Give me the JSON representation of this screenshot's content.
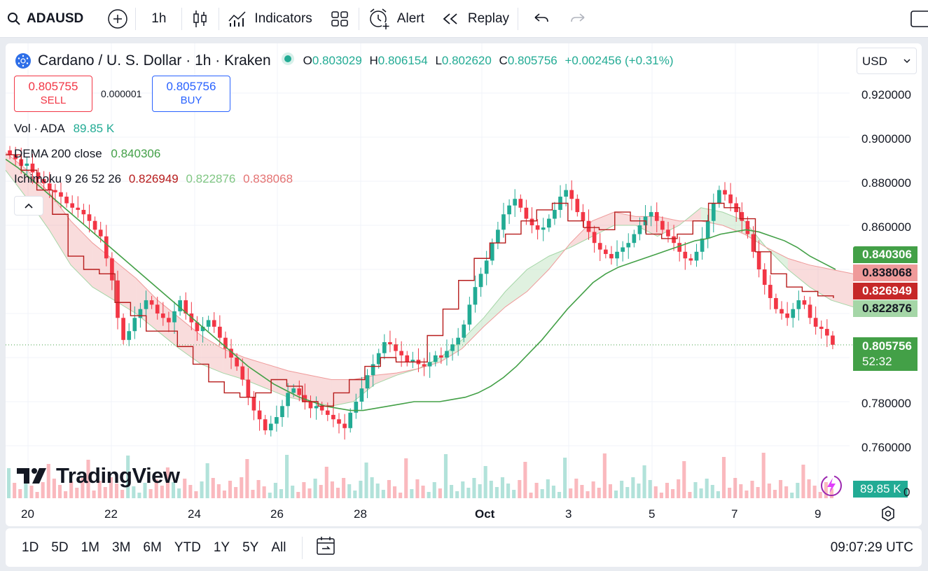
{
  "toolbar": {
    "symbol": "ADAUSD",
    "interval": "1h",
    "indicators_label": "Indicators",
    "alert_label": "Alert",
    "replay_label": "Replay"
  },
  "legend": {
    "title": "Cardano / U. S. Dollar · 1h · Kraken",
    "o_label": "O",
    "o_value": "0.803029",
    "h_label": "H",
    "h_value": "0.806154",
    "l_label": "L",
    "l_value": "0.802620",
    "c_label": "C",
    "c_value": "0.805756",
    "change": "+0.002456 (+0.31%)"
  },
  "trade": {
    "sell_price": "0.805755",
    "sell_label": "SELL",
    "spread": "0.000001",
    "buy_price": "0.805756",
    "buy_label": "BUY"
  },
  "indicators": {
    "vol_label": "Vol · ADA",
    "vol_value": "89.85 K",
    "dema_label": "DEMA 200 close",
    "dema_value": "0.840306",
    "ichimoku_label": "Ichimoku 9 26 52 26",
    "ichi_v1": "0.826949",
    "ichi_v2": "0.822876",
    "ichi_v3": "0.838068"
  },
  "currency": "USD",
  "price_axis": [
    "0.920000",
    "0.900000",
    "0.880000",
    "0.860000",
    "0.780000",
    "0.760000"
  ],
  "price_badges": {
    "dema": "0.840306",
    "span_b": "0.838068",
    "conversion": "0.826949",
    "span_a": "0.822876",
    "last": "0.805756",
    "countdown": "52:32",
    "volume": "89.85 K"
  },
  "time_axis": [
    "20",
    "22",
    "24",
    "26",
    "28",
    "Oct",
    "3",
    "5",
    "7",
    "9"
  ],
  "ranges": [
    "1D",
    "5D",
    "1M",
    "3M",
    "6M",
    "YTD",
    "1Y",
    "5Y",
    "All"
  ],
  "clock": "09:07:29 UTC",
  "watermark": "TradingView",
  "colors": {
    "up": "#22ab94",
    "down": "#f23645",
    "dema": "#43a047",
    "conversion": "#b71c1c",
    "cloud_green": "#a5d6a7",
    "cloud_red": "#ef9a9a"
  },
  "chart_data": {
    "type": "candlestick",
    "ylim": [
      0.752,
      0.934
    ],
    "close": [
      0.892,
      0.89,
      0.887,
      0.888,
      0.884,
      0.881,
      0.879,
      0.876,
      0.875,
      0.873,
      0.87,
      0.868,
      0.867,
      0.865,
      0.862,
      0.858,
      0.855,
      0.845,
      0.835,
      0.818,
      0.808,
      0.812,
      0.818,
      0.822,
      0.826,
      0.824,
      0.82,
      0.818,
      0.816,
      0.821,
      0.826,
      0.82,
      0.816,
      0.812,
      0.814,
      0.817,
      0.814,
      0.809,
      0.804,
      0.8,
      0.796,
      0.79,
      0.782,
      0.776,
      0.772,
      0.767,
      0.77,
      0.773,
      0.778,
      0.784,
      0.786,
      0.783,
      0.78,
      0.777,
      0.778,
      0.776,
      0.774,
      0.772,
      0.77,
      0.768,
      0.775,
      0.78,
      0.786,
      0.792,
      0.797,
      0.802,
      0.807,
      0.806,
      0.803,
      0.801,
      0.798,
      0.799,
      0.797,
      0.796,
      0.798,
      0.801,
      0.8,
      0.803,
      0.806,
      0.809,
      0.815,
      0.824,
      0.832,
      0.838,
      0.844,
      0.852,
      0.858,
      0.865,
      0.869,
      0.872,
      0.868,
      0.863,
      0.86,
      0.858,
      0.859,
      0.863,
      0.867,
      0.873,
      0.876,
      0.872,
      0.866,
      0.862,
      0.857,
      0.852,
      0.849,
      0.847,
      0.845,
      0.848,
      0.85,
      0.852,
      0.856,
      0.86,
      0.864,
      0.866,
      0.862,
      0.858,
      0.855,
      0.852,
      0.848,
      0.845,
      0.844,
      0.848,
      0.854,
      0.862,
      0.87,
      0.876,
      0.874,
      0.87,
      0.866,
      0.862,
      0.856,
      0.848,
      0.84,
      0.833,
      0.827,
      0.822,
      0.82,
      0.818,
      0.822,
      0.826,
      0.824,
      0.818,
      0.814,
      0.813,
      0.81,
      0.8058
    ],
    "dema": [
      0.89,
      0.886,
      0.881,
      0.876,
      0.871,
      0.866,
      0.861,
      0.856,
      0.851,
      0.846,
      0.841,
      0.836,
      0.831,
      0.826,
      0.821,
      0.816,
      0.811,
      0.806,
      0.801,
      0.796,
      0.792,
      0.788,
      0.785,
      0.782,
      0.78,
      0.778,
      0.777,
      0.776,
      0.776,
      0.777,
      0.778,
      0.779,
      0.78,
      0.78,
      0.78,
      0.781,
      0.782,
      0.784,
      0.787,
      0.791,
      0.796,
      0.802,
      0.808,
      0.815,
      0.822,
      0.828,
      0.834,
      0.838,
      0.841,
      0.843,
      0.845,
      0.847,
      0.849,
      0.851,
      0.853,
      0.854,
      0.856,
      0.857,
      0.858,
      0.857,
      0.855,
      0.853,
      0.85,
      0.846,
      0.843,
      0.84
    ],
    "conversion": [
      0.892,
      0.885,
      0.876,
      0.865,
      0.846,
      0.84,
      0.838,
      0.825,
      0.819,
      0.812,
      0.812,
      0.805,
      0.797,
      0.789,
      0.784,
      0.782,
      0.784,
      0.79,
      0.787,
      0.78,
      0.778,
      0.784,
      0.79,
      0.796,
      0.8,
      0.798,
      0.798,
      0.81,
      0.822,
      0.835,
      0.845,
      0.852,
      0.856,
      0.862,
      0.867,
      0.87,
      0.862,
      0.859,
      0.858,
      0.866,
      0.862,
      0.856,
      0.854,
      0.856,
      0.862,
      0.87,
      0.868,
      0.863,
      0.848,
      0.838,
      0.832,
      0.83,
      0.828,
      0.827
    ],
    "span_a": [
      0.885,
      0.872,
      0.858,
      0.842,
      0.832,
      0.826,
      0.82,
      0.812,
      0.804,
      0.797,
      0.793,
      0.79,
      0.786,
      0.782,
      0.78,
      0.778,
      0.78,
      0.788,
      0.792,
      0.795,
      0.8,
      0.808,
      0.818,
      0.83,
      0.84,
      0.846,
      0.85,
      0.855,
      0.86,
      0.86,
      0.855,
      0.86,
      0.868,
      0.866,
      0.862,
      0.85,
      0.84,
      0.832,
      0.826,
      0.823
    ],
    "span_b": [
      0.893,
      0.885,
      0.875,
      0.862,
      0.852,
      0.844,
      0.836,
      0.826,
      0.818,
      0.81,
      0.804,
      0.8,
      0.797,
      0.794,
      0.792,
      0.79,
      0.79,
      0.792,
      0.793,
      0.795,
      0.798,
      0.804,
      0.814,
      0.823,
      0.83,
      0.84,
      0.852,
      0.862,
      0.866,
      0.864,
      0.864,
      0.862,
      0.862,
      0.86,
      0.856,
      0.85,
      0.845,
      0.842,
      0.84,
      0.838
    ]
  }
}
